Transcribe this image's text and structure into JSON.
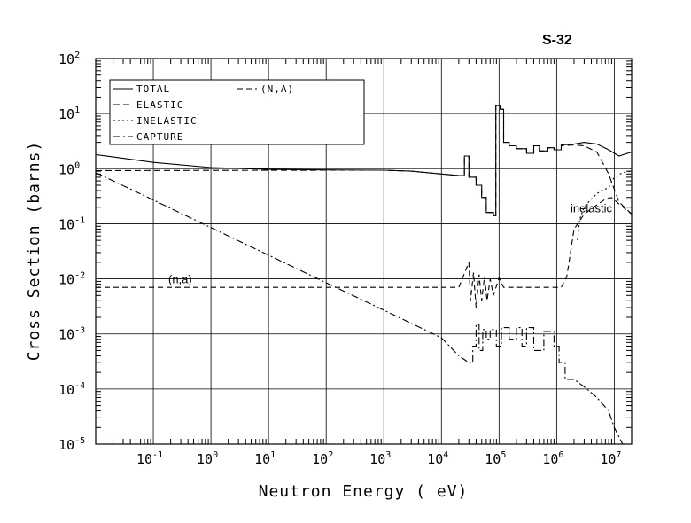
{
  "chart_data": {
    "type": "line",
    "title": "S-32",
    "xlabel": "Neutron Energy ( eV)",
    "ylabel": "Cross Section (barns)",
    "x_scale": "log",
    "y_scale": "log",
    "xlim": [
      0.01,
      20000000
    ],
    "ylim": [
      1e-05,
      100
    ],
    "grid": true,
    "legend_position": "top-left",
    "x_ticks": [
      {
        "base": "10",
        "exp": "-1",
        "value": 0.1
      },
      {
        "base": "10",
        "exp": "0",
        "value": 1
      },
      {
        "base": "10",
        "exp": "1",
        "value": 10
      },
      {
        "base": "10",
        "exp": "2",
        "value": 100
      },
      {
        "base": "10",
        "exp": "3",
        "value": 1000
      },
      {
        "base": "10",
        "exp": "4",
        "value": 10000
      },
      {
        "base": "10",
        "exp": "5",
        "value": 100000
      },
      {
        "base": "10",
        "exp": "6",
        "value": 1000000
      },
      {
        "base": "10",
        "exp": "7",
        "value": 10000000
      }
    ],
    "y_ticks": [
      {
        "base": "10",
        "exp": "-5",
        "value": 1e-05
      },
      {
        "base": "10",
        "exp": "-4",
        "value": 0.0001
      },
      {
        "base": "10",
        "exp": "-3",
        "value": 0.001
      },
      {
        "base": "10",
        "exp": "-2",
        "value": 0.01
      },
      {
        "base": "10",
        "exp": "-1",
        "value": 0.1
      },
      {
        "base": "10",
        "exp": "0",
        "value": 1
      },
      {
        "base": "10",
        "exp": "1",
        "value": 10
      },
      {
        "base": "10",
        "exp": "2",
        "value": 100
      }
    ],
    "annotations": [
      {
        "text": "inelastic",
        "x": 4000000,
        "y": 0.16
      },
      {
        "text": "(n,a)",
        "x": 0.02,
        "y": 0.0083
      }
    ],
    "series": [
      {
        "name": "TOTAL",
        "dash": "solid",
        "step": true,
        "points": [
          [
            0.01,
            1.8
          ],
          [
            0.1,
            1.3
          ],
          [
            1,
            1.05
          ],
          [
            10,
            0.97
          ],
          [
            100,
            0.95
          ],
          [
            1000,
            0.94
          ],
          [
            3000,
            0.9
          ],
          [
            10000,
            0.8
          ],
          [
            20000,
            0.75
          ],
          [
            25000,
            0.75
          ],
          [
            25000,
            1.7
          ],
          [
            30000,
            1.7
          ],
          [
            30000,
            0.7
          ],
          [
            40000,
            0.7
          ],
          [
            40000,
            0.5
          ],
          [
            50000,
            0.5
          ],
          [
            50000,
            0.3
          ],
          [
            60000,
            0.3
          ],
          [
            60000,
            0.16
          ],
          [
            80000,
            0.16
          ],
          [
            80000,
            0.14
          ],
          [
            88000,
            0.14
          ],
          [
            88000,
            14
          ],
          [
            105000,
            14
          ],
          [
            105000,
            12
          ],
          [
            120000,
            12
          ],
          [
            120000,
            3
          ],
          [
            150000,
            3
          ],
          [
            150000,
            2.6
          ],
          [
            200000,
            2.6
          ],
          [
            200000,
            2.3
          ],
          [
            300000,
            2.3
          ],
          [
            300000,
            1.9
          ],
          [
            400000,
            1.9
          ],
          [
            400000,
            2.6
          ],
          [
            500000,
            2.6
          ],
          [
            500000,
            2.1
          ],
          [
            700000,
            2.1
          ],
          [
            700000,
            2.4
          ],
          [
            900000,
            2.4
          ],
          [
            900000,
            2.2
          ],
          [
            1200000,
            2.2
          ],
          [
            1200000,
            2.7
          ],
          [
            2000000,
            2.8
          ],
          [
            3000000,
            3
          ],
          [
            5000000,
            2.8
          ],
          [
            8000000,
            2.2
          ],
          [
            12000000,
            1.7
          ],
          [
            20000000,
            2
          ]
        ]
      },
      {
        "name": "ELASTIC",
        "dash": "dash",
        "step": true,
        "points": [
          [
            0.01,
            0.92
          ],
          [
            1,
            0.93
          ],
          [
            100,
            0.94
          ],
          [
            1000,
            0.94
          ],
          [
            3000,
            0.9
          ],
          [
            10000,
            0.8
          ],
          [
            20000,
            0.75
          ],
          [
            25000,
            0.75
          ],
          [
            25000,
            1.7
          ],
          [
            30000,
            1.7
          ],
          [
            30000,
            0.7
          ],
          [
            40000,
            0.7
          ],
          [
            40000,
            0.5
          ],
          [
            50000,
            0.5
          ],
          [
            50000,
            0.3
          ],
          [
            60000,
            0.3
          ],
          [
            60000,
            0.16
          ],
          [
            80000,
            0.16
          ],
          [
            80000,
            0.14
          ],
          [
            88000,
            0.14
          ],
          [
            88000,
            14
          ],
          [
            105000,
            14
          ],
          [
            105000,
            12
          ],
          [
            120000,
            12
          ],
          [
            120000,
            3
          ],
          [
            150000,
            3
          ],
          [
            150000,
            2.6
          ],
          [
            200000,
            2.6
          ],
          [
            200000,
            2.3
          ],
          [
            300000,
            2.3
          ],
          [
            300000,
            1.9
          ],
          [
            400000,
            1.9
          ],
          [
            400000,
            2.6
          ],
          [
            500000,
            2.6
          ],
          [
            500000,
            2.1
          ],
          [
            700000,
            2.1
          ],
          [
            700000,
            2.4
          ],
          [
            900000,
            2.4
          ],
          [
            900000,
            2.2
          ],
          [
            1200000,
            2.2
          ],
          [
            1200000,
            2.6
          ],
          [
            2000000,
            2.7
          ],
          [
            3000000,
            2.6
          ],
          [
            5000000,
            2
          ],
          [
            8000000,
            0.8
          ],
          [
            12000000,
            0.25
          ],
          [
            20000000,
            0.15
          ]
        ]
      },
      {
        "name": "INELASTIC",
        "dash": "dot",
        "step": true,
        "points": [
          [
            2300000,
            0.05
          ],
          [
            2500000,
            0.12
          ],
          [
            3000000,
            0.2
          ],
          [
            4000000,
            0.28
          ],
          [
            5000000,
            0.35
          ],
          [
            6000000,
            0.4
          ],
          [
            8000000,
            0.45
          ],
          [
            10000000,
            0.7
          ],
          [
            14000000,
            0.85
          ],
          [
            20000000,
            0.9
          ]
        ]
      },
      {
        "name": "CAPTURE",
        "dash": "dashdot",
        "step": true,
        "points": [
          [
            0.01,
            0.85
          ],
          [
            0.1,
            0.27
          ],
          [
            1,
            0.085
          ],
          [
            10,
            0.027
          ],
          [
            100,
            0.0085
          ],
          [
            1000,
            0.0027
          ],
          [
            10000,
            0.00085
          ],
          [
            20000,
            0.0004
          ],
          [
            30000,
            0.0003
          ],
          [
            35000,
            0.0003
          ],
          [
            35000,
            0.0006
          ],
          [
            40000,
            0.0006
          ],
          [
            40000,
            0.0015
          ],
          [
            45000,
            0.0015
          ],
          [
            45000,
            0.0005
          ],
          [
            52000,
            0.0005
          ],
          [
            52000,
            0.0012
          ],
          [
            60000,
            0.0012
          ],
          [
            60000,
            0.0008
          ],
          [
            70000,
            0.0008
          ],
          [
            70000,
            0.0012
          ],
          [
            90000,
            0.0012
          ],
          [
            90000,
            0.0006
          ],
          [
            110000,
            0.0006
          ],
          [
            110000,
            0.0013
          ],
          [
            150000,
            0.0013
          ],
          [
            150000,
            0.0008
          ],
          [
            200000,
            0.0008
          ],
          [
            200000,
            0.0013
          ],
          [
            250000,
            0.0013
          ],
          [
            250000,
            0.0006
          ],
          [
            300000,
            0.0006
          ],
          [
            300000,
            0.0013
          ],
          [
            400000,
            0.0013
          ],
          [
            400000,
            0.0005
          ],
          [
            600000,
            0.0005
          ],
          [
            600000,
            0.0011
          ],
          [
            900000,
            0.0011
          ],
          [
            900000,
            0.0006
          ],
          [
            1100000,
            0.0006
          ],
          [
            1100000,
            0.0003
          ],
          [
            1400000,
            0.0003
          ],
          [
            1400000,
            0.00015
          ],
          [
            2000000,
            0.00015
          ],
          [
            3000000,
            0.00011
          ],
          [
            5000000,
            7e-05
          ],
          [
            8000000,
            4e-05
          ],
          [
            10000000,
            2e-05
          ],
          [
            14000000,
            1e-05
          ]
        ]
      },
      {
        "name": "(N,A)",
        "dash": "longdash",
        "step": true,
        "points": [
          [
            0.01,
            0.007
          ],
          [
            10000,
            0.007
          ],
          [
            20000,
            0.007
          ],
          [
            30000,
            0.02
          ],
          [
            32000,
            0.004
          ],
          [
            36000,
            0.013
          ],
          [
            40000,
            0.003
          ],
          [
            45000,
            0.012
          ],
          [
            50000,
            0.004
          ],
          [
            56000,
            0.011
          ],
          [
            62000,
            0.004
          ],
          [
            70000,
            0.01
          ],
          [
            80000,
            0.005
          ],
          [
            100000,
            0.0105
          ],
          [
            120000,
            0.007
          ],
          [
            1200000,
            0.007
          ],
          [
            1500000,
            0.011
          ],
          [
            2000000,
            0.08
          ],
          [
            3000000,
            0.15
          ],
          [
            5000000,
            0.22
          ],
          [
            7000000,
            0.28
          ],
          [
            9000000,
            0.3
          ],
          [
            12000000,
            0.23
          ],
          [
            20000000,
            0.15
          ]
        ]
      }
    ]
  }
}
